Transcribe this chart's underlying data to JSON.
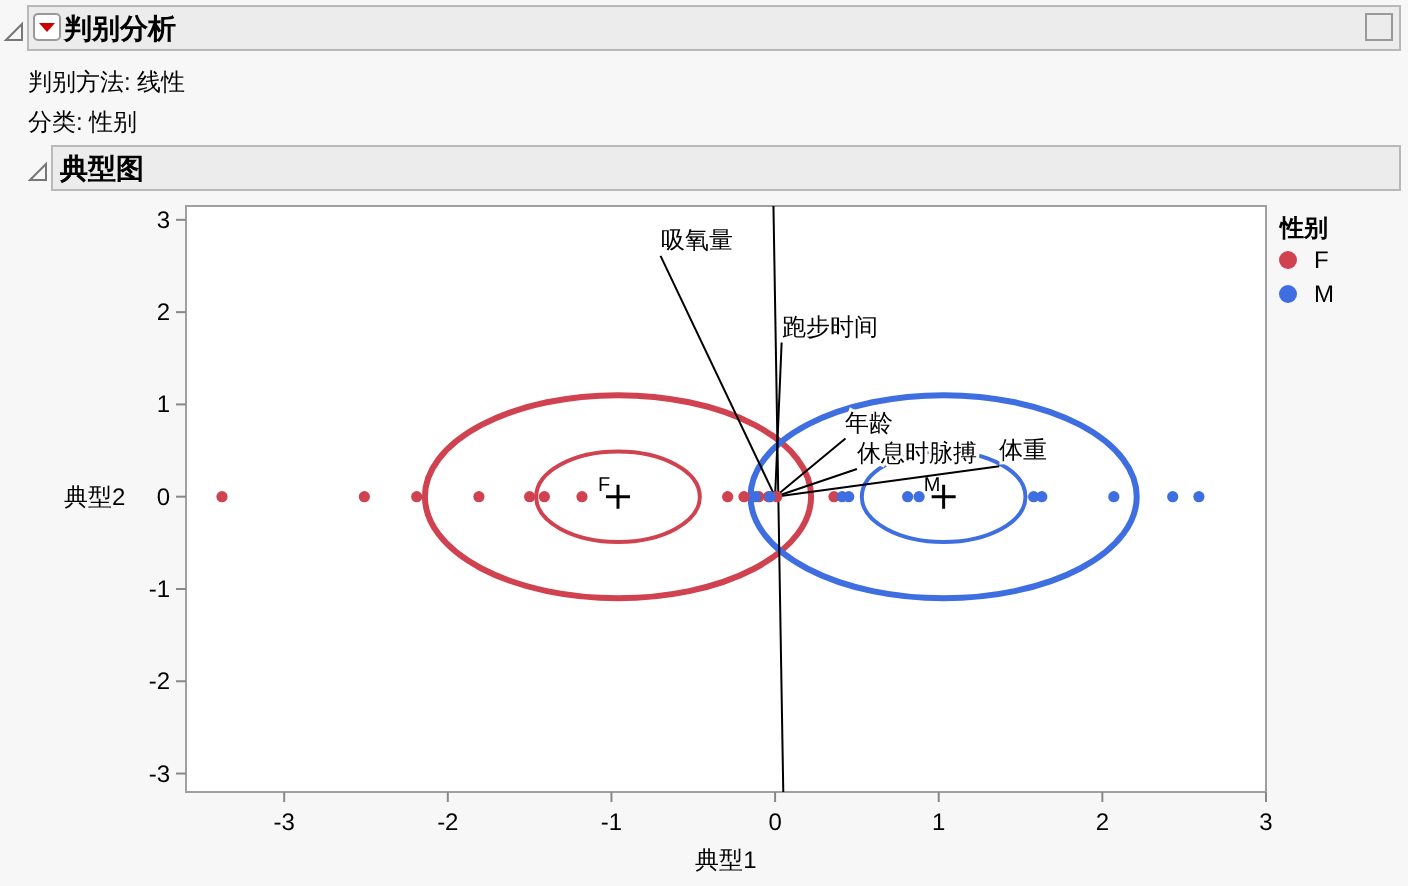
{
  "chart_data": {
    "type": "scatter",
    "title": "判别分析",
    "subtitle": "典型图",
    "xlabel": "典型1",
    "ylabel": "典型2",
    "legend_title": "性别",
    "legend": "right",
    "grid": false,
    "xlim": [
      -3.6,
      3
    ],
    "ylim": [
      -3.2,
      3.15
    ],
    "xticks": [
      -3,
      -2,
      -1,
      0,
      1,
      2,
      3
    ],
    "yticks": [
      -3,
      -2,
      -1,
      0,
      1,
      2,
      3
    ],
    "annotations": [
      "判别方法: 线性",
      "分类: 性别",
      {
        "text": "吸氧量",
        "x": -0.7,
        "y": 2.61
      },
      {
        "text": "跑步时间",
        "x": 0.04,
        "y": 1.67
      },
      {
        "text": "年龄",
        "x": 0.43,
        "y": 0.63
      },
      {
        "text": "休息时脉搏",
        "x": 0.5,
        "y": 0.3
      },
      {
        "text": "体重",
        "x": 1.37,
        "y": 0.33
      },
      {
        "text": "F",
        "x": -0.96,
        "y": 0
      },
      {
        "text": "M",
        "x": 1.03,
        "y": 0
      }
    ],
    "series": [
      {
        "type": "line",
        "color": "#000000",
        "x": [
          -0.01,
          0.05
        ],
        "values": [
          3.15,
          -3.2
        ]
      },
      {
        "type": "line",
        "color": "#000000",
        "x": [
          0,
          -0.7
        ],
        "values": [
          0,
          2.61
        ]
      },
      {
        "type": "line",
        "color": "#000000",
        "x": [
          0,
          0.04
        ],
        "values": [
          0,
          1.67
        ]
      },
      {
        "type": "line",
        "color": "#000000",
        "x": [
          0,
          0.43
        ],
        "values": [
          0,
          0.63
        ]
      },
      {
        "type": "line",
        "color": "#000000",
        "x": [
          0,
          0.5
        ],
        "values": [
          0,
          0.3
        ]
      },
      {
        "type": "line",
        "color": "#000000",
        "x": [
          0,
          1.37
        ],
        "values": [
          0,
          0.33
        ]
      },
      {
        "type": "scatter",
        "name": "F",
        "color": "#d0424f",
        "marker": "circle",
        "x": [
          -3.38,
          -2.51,
          -2.19,
          -1.81,
          -1.5,
          -1.41,
          -1.18,
          -0.29,
          -0.19,
          -0.1,
          -0.04,
          0.01,
          0.36
        ],
        "values": [
          0,
          0,
          0,
          0,
          0,
          0,
          0,
          0,
          0,
          0,
          0,
          0,
          0
        ]
      },
      {
        "type": "scatter",
        "name": "M",
        "color": "#3e6ee0",
        "marker": "circle",
        "x": [
          -0.12,
          -0.03,
          0.41,
          0.45,
          0.81,
          0.88,
          1.58,
          1.63,
          2.07,
          2.43,
          2.59
        ],
        "values": [
          0,
          0,
          0,
          0,
          0,
          0,
          0,
          0,
          0,
          0,
          0
        ]
      },
      {
        "type": "scatter",
        "color": "#000000",
        "marker": "cross",
        "x": [
          -0.96,
          1.03
        ],
        "values": [
          0,
          0
        ]
      }
    ]
  }
}
